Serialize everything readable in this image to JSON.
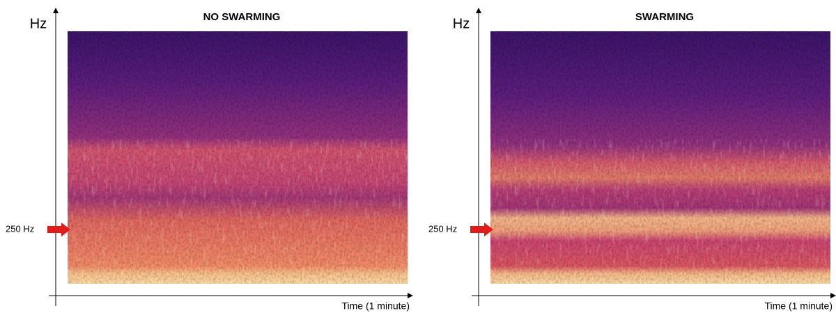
{
  "panels": [
    {
      "title": "NO SWARMING",
      "y_axis_label": "Hz",
      "x_axis_label": "Time (1 minute)",
      "marker_label": "250 Hz"
    },
    {
      "title": "SWARMING",
      "y_axis_label": "Hz",
      "x_axis_label": "Time (1 minute)",
      "marker_label": "250 Hz"
    }
  ]
}
